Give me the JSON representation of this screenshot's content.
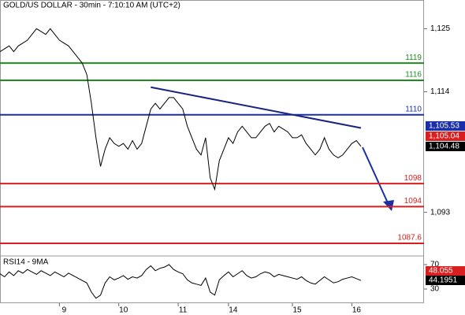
{
  "chart_data": {
    "type": "line",
    "title": "GOLD/US DOLLAR - 30min - 7:10:10 AM (UTC+2)",
    "xlim": [
      0,
      92.8
    ],
    "xticks": [
      {
        "value": 13,
        "label": "9"
      },
      {
        "value": 26,
        "label": "10"
      },
      {
        "value": 39,
        "label": "11"
      },
      {
        "value": 50,
        "label": "14"
      },
      {
        "value": 64,
        "label": "15"
      },
      {
        "value": 77,
        "label": "16"
      }
    ],
    "ylim": [
      1085.4,
      1130
    ],
    "yticks": [
      {
        "value": 1093,
        "label": "1,093"
      },
      {
        "value": 1114,
        "label": "1,114"
      },
      {
        "value": 1125,
        "label": "1,125"
      }
    ],
    "series": [
      {
        "name": "GOLD/US DOLLAR",
        "color": "#000000",
        "values": [
          1121,
          1121.5,
          1122,
          1121,
          1122,
          1122.5,
          1123,
          1124,
          1125,
          1124.5,
          1124,
          1125,
          1124,
          1123,
          1122.5,
          1122,
          1121,
          1120,
          1119,
          1117,
          1112,
          1106,
          1101,
          1104,
          1106,
          1105,
          1104.5,
          1105,
          1104,
          1105.5,
          1104,
          1105,
          1108,
          1111,
          1112,
          1111,
          1112,
          1113,
          1113,
          1112,
          1111,
          1108,
          1106,
          1104,
          1103,
          1106,
          1099,
          1097,
          1102,
          1104,
          1106,
          1105,
          1107,
          1108,
          1107,
          1106,
          1106,
          1107,
          1108,
          1108.5,
          1107,
          1108,
          1107.5,
          1107,
          1106,
          1106,
          1106.5,
          1105,
          1104,
          1103,
          1104,
          1106,
          1104,
          1103,
          1102.5,
          1103,
          1104,
          1105,
          1105.5,
          1104.5
        ]
      }
    ],
    "levels": [
      {
        "value": 1119,
        "color": "#1e8c1e"
      },
      {
        "value": 1116,
        "color": "#1e8c1e"
      },
      {
        "value": 1110,
        "color": "#1a2ea8"
      },
      {
        "value": 1098,
        "color": "#d81e1e"
      },
      {
        "value": 1094,
        "color": "#d81e1e"
      },
      {
        "value": 1087.6,
        "color": "#d81e1e"
      }
    ],
    "trendline": {
      "color": "#1a237e",
      "x": [
        33,
        79
      ],
      "y": [
        1114.8,
        1107.7
      ]
    },
    "price_badges": [
      {
        "value": 1105.53,
        "label": "1,105.53",
        "color": "#1a2ea8"
      },
      {
        "value": 1105.04,
        "label": "1,105.04",
        "color": "#d81e1e"
      },
      {
        "value": 1104.48,
        "label": "1,104.48",
        "color": "#000000"
      }
    ],
    "rsi": {
      "label": "RSI14 - 9MA",
      "ylim": [
        6.8,
        84.2
      ],
      "yticks": [
        30,
        70
      ],
      "color": "#000000",
      "values": [
        55,
        50,
        58,
        52,
        60,
        56,
        62,
        58,
        54,
        60,
        56,
        52,
        58,
        54,
        50,
        56,
        52,
        48,
        44,
        40,
        25,
        15,
        20,
        40,
        50,
        45,
        48,
        52,
        46,
        50,
        48,
        52,
        62,
        68,
        60,
        64,
        66,
        70,
        62,
        58,
        55,
        45,
        40,
        38,
        36,
        48,
        25,
        20,
        45,
        52,
        58,
        50,
        55,
        60,
        52,
        48,
        50,
        55,
        58,
        56,
        50,
        54,
        52,
        50,
        48,
        46,
        50,
        44,
        40,
        38,
        44,
        50,
        45,
        40,
        42,
        46,
        48,
        50,
        47,
        44
      ],
      "badges": [
        {
          "value": 48.055,
          "label": "48.055",
          "color": "#d81e1e"
        },
        {
          "value": 44.1951,
          "label": "44.1951",
          "color": "#000000"
        }
      ]
    }
  }
}
